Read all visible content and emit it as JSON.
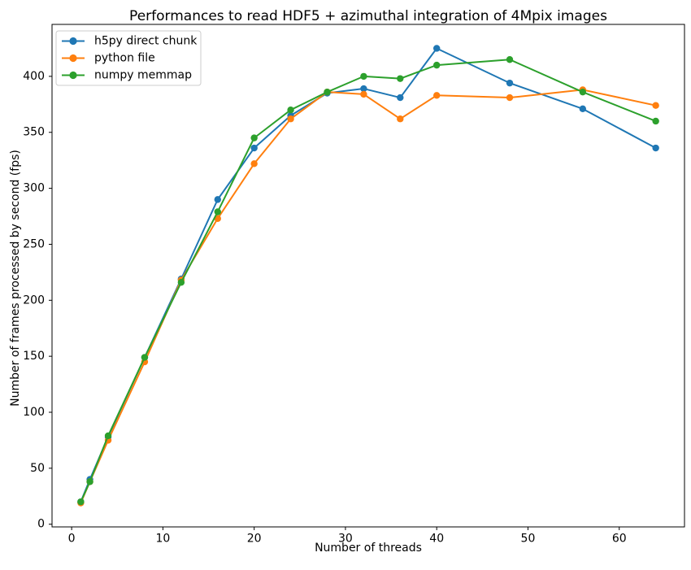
{
  "chart_data": {
    "type": "line",
    "title": "Performances to read HDF5 + azimuthal integration of 4Mpix images",
    "xlabel": "Number of threads",
    "ylabel": "Number of frames processed by second (fps)",
    "x": [
      1,
      2,
      4,
      8,
      12,
      16,
      20,
      24,
      28,
      32,
      36,
      40,
      48,
      56,
      64
    ],
    "series": [
      {
        "name": "h5py direct chunk",
        "color": "#1f77b4",
        "values": [
          20,
          40,
          78,
          149,
          219,
          290,
          336,
          365,
          385,
          389,
          381,
          425,
          394,
          371,
          336
        ]
      },
      {
        "name": "python file",
        "color": "#ff7f0e",
        "values": [
          19,
          38,
          75,
          145,
          218,
          273,
          322,
          362,
          386,
          384,
          362,
          383,
          381,
          388,
          374
        ]
      },
      {
        "name": "numpy memmap",
        "color": "#2ca02c",
        "values": [
          20,
          38,
          79,
          149,
          216,
          279,
          345,
          370,
          386,
          400,
          398,
          410,
          415,
          386,
          360
        ]
      }
    ],
    "xticks": [
      0,
      10,
      20,
      30,
      40,
      50,
      60
    ],
    "yticks": [
      0,
      50,
      100,
      150,
      200,
      250,
      300,
      350,
      400
    ],
    "xlim": [
      -2.15,
      67.15
    ],
    "ylim": [
      -2.4,
      446.4
    ],
    "grid": false,
    "legend_position": "upper-left",
    "marker": "circle",
    "axis_color": "#000000",
    "legend_border_color": "#cccccc",
    "background_color": "#ffffff"
  }
}
